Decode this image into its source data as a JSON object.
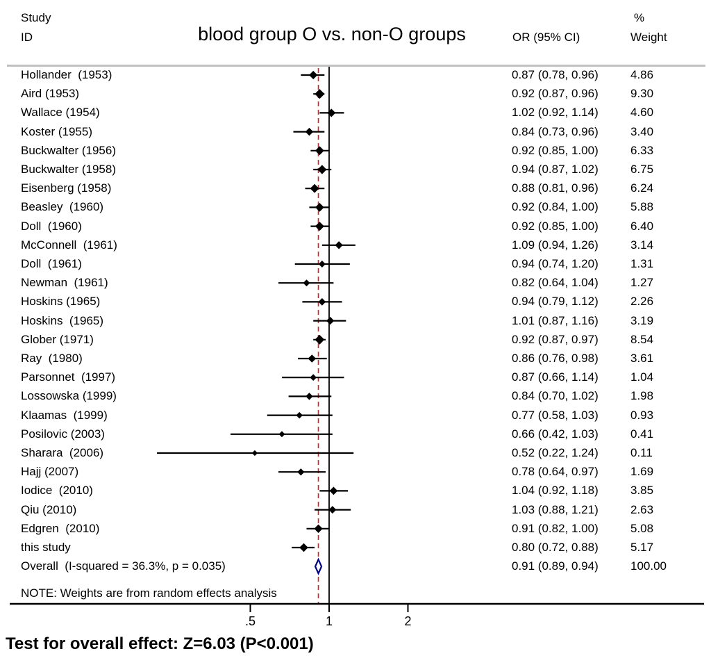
{
  "header": {
    "study_col_line1": "Study",
    "study_col_line2": "ID",
    "title": "blood group O vs. non-O groups",
    "or_col_header": "OR (95% CI)",
    "weight_col_line1": "%",
    "weight_col_line2": "Weight"
  },
  "note": "NOTE: Weights are from random effects analysis",
  "footer": "Test for overall effect: Z=6.03 (P<0.001)",
  "colors": {
    "ci_line": "#000000",
    "marker": "#000000",
    "null_line": "#000000",
    "dashed_line": "#a03a3a",
    "overall_diamond": "#00008b",
    "separator": "#c0c0c0",
    "axis_line": "#000000",
    "text": "#000000"
  },
  "chart_data": {
    "type": "forest",
    "title": "blood group O vs. non-O groups",
    "x_scale": "log",
    "axis": {
      "ticks": [
        {
          "value": 0.5,
          "label": ".5"
        },
        {
          "value": 1,
          "label": "1"
        },
        {
          "value": 2,
          "label": "2"
        }
      ]
    },
    "null_line_value": 1,
    "overall_dashed_line_value": 0.91,
    "studies": [
      {
        "id": "Hollander  (1953)",
        "or": 0.87,
        "ci_low": 0.78,
        "ci_high": 0.96,
        "weight": 4.86
      },
      {
        "id": "Aird (1953)",
        "or": 0.92,
        "ci_low": 0.87,
        "ci_high": 0.96,
        "weight": 9.3
      },
      {
        "id": "Wallace (1954)",
        "or": 1.02,
        "ci_low": 0.92,
        "ci_high": 1.14,
        "weight": 4.6
      },
      {
        "id": "Koster (1955)",
        "or": 0.84,
        "ci_low": 0.73,
        "ci_high": 0.96,
        "weight": 3.4
      },
      {
        "id": "Buckwalter (1956)",
        "or": 0.92,
        "ci_low": 0.85,
        "ci_high": 1.0,
        "weight": 6.33
      },
      {
        "id": "Buckwalter (1958)",
        "or": 0.94,
        "ci_low": 0.87,
        "ci_high": 1.02,
        "weight": 6.75
      },
      {
        "id": "Eisenberg (1958)",
        "or": 0.88,
        "ci_low": 0.81,
        "ci_high": 0.96,
        "weight": 6.24
      },
      {
        "id": "Beasley  (1960)",
        "or": 0.92,
        "ci_low": 0.84,
        "ci_high": 1.0,
        "weight": 5.88
      },
      {
        "id": "Doll  (1960)",
        "or": 0.92,
        "ci_low": 0.85,
        "ci_high": 1.0,
        "weight": 6.4
      },
      {
        "id": "McConnell  (1961)",
        "or": 1.09,
        "ci_low": 0.94,
        "ci_high": 1.26,
        "weight": 3.14
      },
      {
        "id": "Doll  (1961)",
        "or": 0.94,
        "ci_low": 0.74,
        "ci_high": 1.2,
        "weight": 1.31
      },
      {
        "id": "Newman  (1961)",
        "or": 0.82,
        "ci_low": 0.64,
        "ci_high": 1.04,
        "weight": 1.27
      },
      {
        "id": "Hoskins (1965)",
        "or": 0.94,
        "ci_low": 0.79,
        "ci_high": 1.12,
        "weight": 2.26
      },
      {
        "id": "Hoskins  (1965)",
        "or": 1.01,
        "ci_low": 0.87,
        "ci_high": 1.16,
        "weight": 3.19
      },
      {
        "id": "Glober (1971)",
        "or": 0.92,
        "ci_low": 0.87,
        "ci_high": 0.97,
        "weight": 8.54
      },
      {
        "id": "Ray  (1980)",
        "or": 0.86,
        "ci_low": 0.76,
        "ci_high": 0.98,
        "weight": 3.61
      },
      {
        "id": "Parsonnet  (1997)",
        "or": 0.87,
        "ci_low": 0.66,
        "ci_high": 1.14,
        "weight": 1.04
      },
      {
        "id": "Lossowska (1999)",
        "or": 0.84,
        "ci_low": 0.7,
        "ci_high": 1.02,
        "weight": 1.98
      },
      {
        "id": "Klaamas  (1999)",
        "or": 0.77,
        "ci_low": 0.58,
        "ci_high": 1.03,
        "weight": 0.93
      },
      {
        "id": "Posilovic (2003)",
        "or": 0.66,
        "ci_low": 0.42,
        "ci_high": 1.03,
        "weight": 0.41
      },
      {
        "id": "Sharara  (2006)",
        "or": 0.52,
        "ci_low": 0.22,
        "ci_high": 1.24,
        "weight": 0.11
      },
      {
        "id": "Hajj (2007)",
        "or": 0.78,
        "ci_low": 0.64,
        "ci_high": 0.97,
        "weight": 1.69
      },
      {
        "id": "Iodice  (2010)",
        "or": 1.04,
        "ci_low": 0.92,
        "ci_high": 1.18,
        "weight": 3.85
      },
      {
        "id": "Qiu (2010)",
        "or": 1.03,
        "ci_low": 0.88,
        "ci_high": 1.21,
        "weight": 2.63
      },
      {
        "id": "Edgren  (2010)",
        "or": 0.91,
        "ci_low": 0.82,
        "ci_high": 1.0,
        "weight": 5.08
      },
      {
        "id": "this study",
        "or": 0.8,
        "ci_low": 0.72,
        "ci_high": 0.88,
        "weight": 5.17
      }
    ],
    "overall": {
      "id": "Overall  (I-squared = 36.3%, p = 0.035)",
      "or": 0.91,
      "ci_low": 0.89,
      "ci_high": 0.94,
      "weight": 100.0
    }
  }
}
